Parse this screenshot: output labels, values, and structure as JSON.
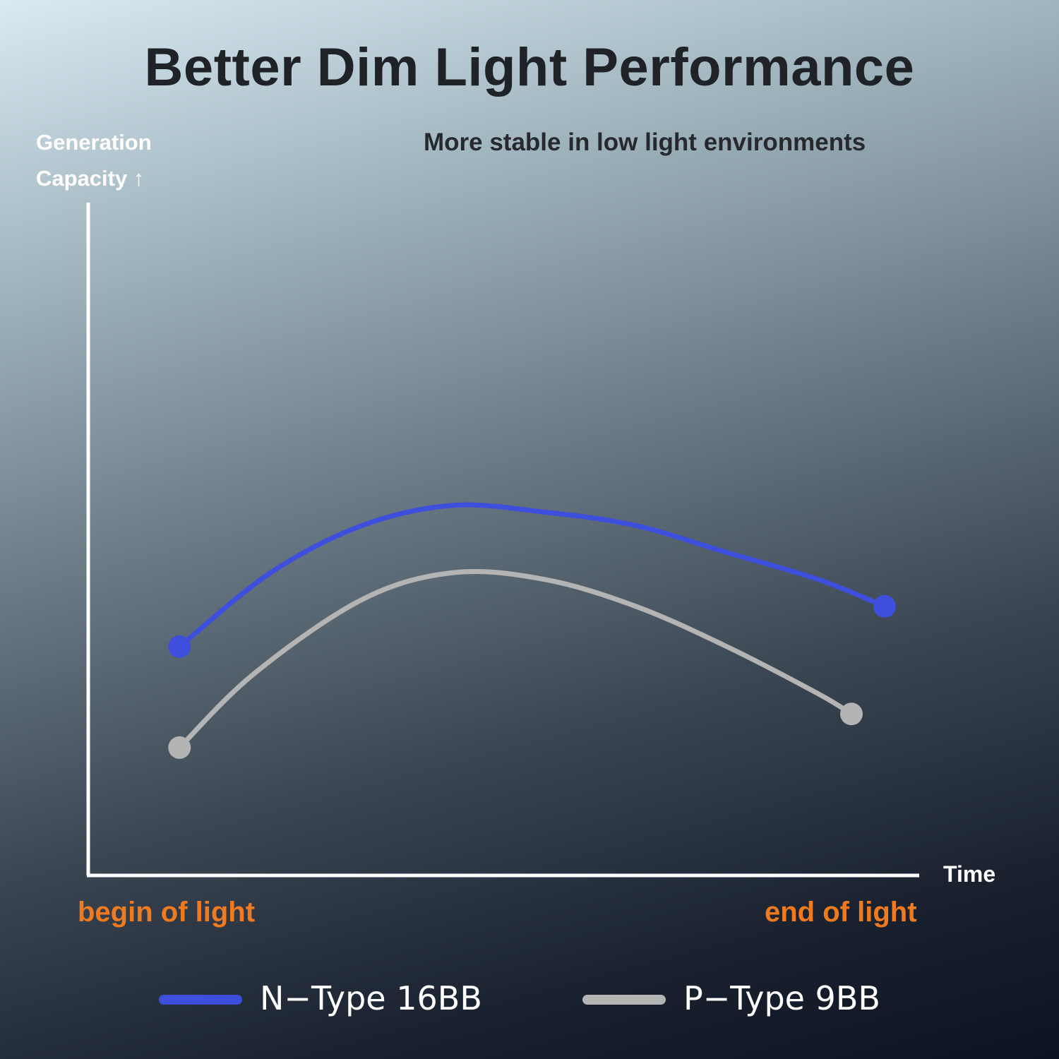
{
  "chart_data": {
    "type": "line",
    "title": "Better Dim Light Performance",
    "subtitle": "More stable in low light environments",
    "ylabel_lines": [
      "Generation",
      "Capacity ↑"
    ],
    "xlabel": "Time",
    "x_tick_labels": [
      "begin of light",
      "end of light"
    ],
    "xlim": [
      0,
      100
    ],
    "ylim": [
      0,
      100
    ],
    "grid": false,
    "legend_position": "bottom",
    "series": [
      {
        "name": "N-Type 16BB",
        "color": "#3d4fdc",
        "x": [
          11,
          22,
          33,
          44,
          55,
          66,
          77,
          88,
          96
        ],
        "y": [
          34,
          45,
          52,
          55,
          54,
          52,
          48,
          44,
          40
        ]
      },
      {
        "name": "P-Type 9BB",
        "color": "#b4b4b4",
        "x": [
          11,
          20,
          33,
          44,
          55,
          66,
          77,
          88,
          92
        ],
        "y": [
          19,
          30,
          41,
          45,
          44,
          40,
          34,
          27,
          24
        ]
      }
    ]
  },
  "legend": [
    {
      "label": "N−Type 16BB",
      "color": "#3d4fdc"
    },
    {
      "label": "P−Type 9BB",
      "color": "#b4b4b4"
    }
  ]
}
